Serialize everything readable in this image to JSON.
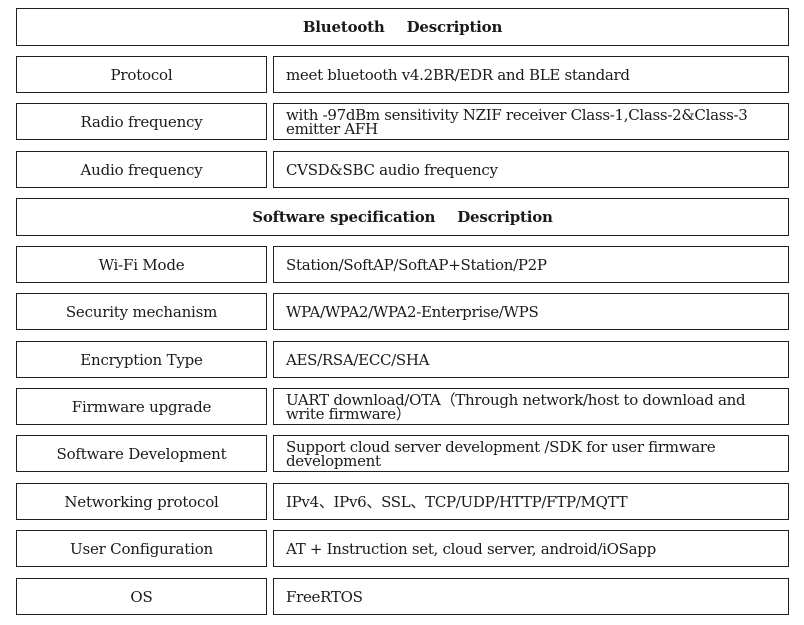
{
  "bluetooth_header": {
    "left": "Bluetooth",
    "right": "Description"
  },
  "bluetooth_rows": [
    {
      "label": "Protocol",
      "value": "meet bluetooth v4.2BR/EDR and BLE standard"
    },
    {
      "label": "Radio frequency",
      "value": "with -97dBm sensitivity NZIF receiver Class-1,Class-2&Class-3 emitter AFH"
    },
    {
      "label": "Audio frequency",
      "value": "CVSD&SBC audio frequency"
    }
  ],
  "software_header": {
    "left": "Software specification",
    "right": "Description"
  },
  "software_rows": [
    {
      "label": "Wi-Fi Mode",
      "value": "Station/SoftAP/SoftAP+Station/P2P"
    },
    {
      "label": "Security mechanism",
      "value": "WPA/WPA2/WPA2-Enterprise/WPS"
    },
    {
      "label": "Encryption Type",
      "value": "AES/RSA/ECC/SHA"
    },
    {
      "label": "Firmware upgrade",
      "value": "UART download/OTA（Through network/host to download and write firmware）"
    },
    {
      "label": "Software Development",
      "value": "Support cloud server development /SDK for user firmware development"
    },
    {
      "label": "Networking protocol",
      "value": "IPv4、IPv6、SSL、TCP/UDP/HTTP/FTP/MQTT"
    },
    {
      "label": "User Configuration",
      "value": "AT + Instruction set, cloud server, android/iOSapp"
    },
    {
      "label": "OS",
      "value": "FreeRTOS"
    }
  ]
}
